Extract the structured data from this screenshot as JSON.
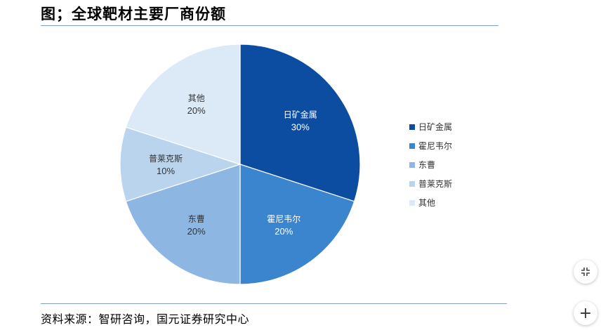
{
  "title": "图；全球靶材主要厂商份额",
  "source": "资料来源：智研咨询，国元证券研究中心",
  "chart_data": {
    "type": "pie",
    "title": "",
    "slices": [
      {
        "label": "日矿金属",
        "value": 30,
        "value_label": "30%",
        "color": "#0c4da2"
      },
      {
        "label": "霍尼韦尔",
        "value": 20,
        "value_label": "20%",
        "color": "#3b85cf"
      },
      {
        "label": "东曹",
        "value": 20,
        "value_label": "20%",
        "color": "#8db6e2"
      },
      {
        "label": "普莱克斯",
        "value": 10,
        "value_label": "10%",
        "color": "#bad4ee"
      },
      {
        "label": "其他",
        "value": 20,
        "value_label": "20%",
        "color": "#dce9f6"
      }
    ],
    "legend_position": "right",
    "start": "top",
    "direction": "clockwise"
  },
  "controls": {
    "add_label": "+"
  }
}
